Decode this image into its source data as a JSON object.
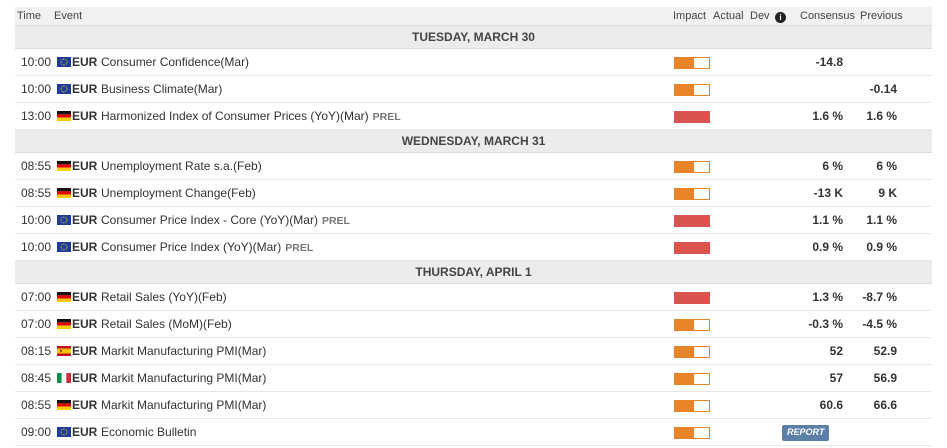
{
  "header": {
    "time": "Time",
    "event": "Event",
    "impact": "Impact",
    "actual": "Actual",
    "dev": "Dev",
    "consensus": "Consensus",
    "previous": "Previous"
  },
  "colors": {
    "medium_impact": "#e8832a",
    "high_impact": "#d9534f",
    "report_badge": "#5b7fa6"
  },
  "days": [
    {
      "label": "TUESDAY, MARCH 30",
      "events": [
        {
          "time": "10:00",
          "flag": "eu-flag-icon",
          "currency": "EUR",
          "name": "Consumer Confidence(Mar)",
          "prel": "",
          "impact": "medium",
          "impact_level": 0.55,
          "consensus": "-14.8",
          "previous": "",
          "badge": ""
        },
        {
          "time": "10:00",
          "flag": "eu-flag-icon",
          "currency": "EUR",
          "name": "Business Climate(Mar)",
          "prel": "",
          "impact": "medium",
          "impact_level": 0.55,
          "consensus": "",
          "previous": "-0.14",
          "badge": ""
        },
        {
          "time": "13:00",
          "flag": "germany-flag-icon",
          "currency": "EUR",
          "name": "Harmonized Index of Consumer Prices (YoY)(Mar)",
          "prel": "PREL",
          "impact": "high",
          "impact_level": 1,
          "consensus": "1.6 %",
          "previous": "1.6 %",
          "badge": ""
        }
      ]
    },
    {
      "label": "WEDNESDAY, MARCH 31",
      "events": [
        {
          "time": "08:55",
          "flag": "germany-flag-icon",
          "currency": "EUR",
          "name": "Unemployment Rate s.a.(Feb)",
          "prel": "",
          "impact": "medium",
          "impact_level": 0.55,
          "consensus": "6 %",
          "previous": "6 %",
          "badge": ""
        },
        {
          "time": "08:55",
          "flag": "germany-flag-icon",
          "currency": "EUR",
          "name": "Unemployment Change(Feb)",
          "prel": "",
          "impact": "medium",
          "impact_level": 0.55,
          "consensus": "-13 K",
          "previous": "9 K",
          "badge": ""
        },
        {
          "time": "10:00",
          "flag": "eu-flag-icon",
          "currency": "EUR",
          "name": "Consumer Price Index - Core (YoY)(Mar)",
          "prel": "PREL",
          "impact": "high",
          "impact_level": 1,
          "consensus": "1.1 %",
          "previous": "1.1 %",
          "badge": ""
        },
        {
          "time": "10:00",
          "flag": "eu-flag-icon",
          "currency": "EUR",
          "name": "Consumer Price Index (YoY)(Mar)",
          "prel": "PREL",
          "impact": "high",
          "impact_level": 1,
          "consensus": "0.9 %",
          "previous": "0.9 %",
          "badge": ""
        }
      ]
    },
    {
      "label": "THURSDAY, APRIL 1",
      "events": [
        {
          "time": "07:00",
          "flag": "germany-flag-icon",
          "currency": "EUR",
          "name": "Retail Sales (YoY)(Feb)",
          "prel": "",
          "impact": "high",
          "impact_level": 1,
          "consensus": "1.3 %",
          "previous": "-8.7 %",
          "badge": ""
        },
        {
          "time": "07:00",
          "flag": "germany-flag-icon",
          "currency": "EUR",
          "name": "Retail Sales (MoM)(Feb)",
          "prel": "",
          "impact": "medium",
          "impact_level": 0.55,
          "consensus": "-0.3 %",
          "previous": "-4.5 %",
          "badge": ""
        },
        {
          "time": "08:15",
          "flag": "spain-flag-icon",
          "currency": "EUR",
          "name": "Markit Manufacturing PMI(Mar)",
          "prel": "",
          "impact": "medium",
          "impact_level": 0.55,
          "consensus": "52",
          "previous": "52.9",
          "badge": ""
        },
        {
          "time": "08:45",
          "flag": "italy-flag-icon",
          "currency": "EUR",
          "name": "Markit Manufacturing PMI(Mar)",
          "prel": "",
          "impact": "medium",
          "impact_level": 0.55,
          "consensus": "57",
          "previous": "56.9",
          "badge": ""
        },
        {
          "time": "08:55",
          "flag": "germany-flag-icon",
          "currency": "EUR",
          "name": "Markit Manufacturing PMI(Mar)",
          "prel": "",
          "impact": "medium",
          "impact_level": 0.55,
          "consensus": "60.6",
          "previous": "66.6",
          "badge": ""
        },
        {
          "time": "09:00",
          "flag": "eu-flag-icon",
          "currency": "EUR",
          "name": "Economic Bulletin",
          "prel": "",
          "impact": "medium",
          "impact_level": 0.55,
          "consensus": "",
          "previous": "",
          "badge": "REPORT"
        }
      ]
    }
  ]
}
